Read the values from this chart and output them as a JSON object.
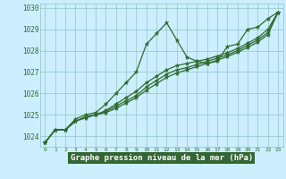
{
  "x": [
    0,
    1,
    2,
    3,
    4,
    5,
    6,
    7,
    8,
    9,
    10,
    11,
    12,
    13,
    14,
    15,
    16,
    17,
    18,
    19,
    20,
    21,
    22,
    23
  ],
  "line_spike": [
    1023.7,
    1024.3,
    1024.3,
    1024.8,
    1025.0,
    1025.1,
    1025.5,
    1026.0,
    1026.5,
    1027.0,
    1028.3,
    1028.8,
    1029.3,
    1028.5,
    1027.7,
    1027.5,
    1027.4,
    1027.5,
    1028.2,
    1028.3,
    1029.0,
    1029.1,
    1029.5,
    1029.8
  ],
  "line_a": [
    1023.7,
    1024.3,
    1024.3,
    1024.7,
    1024.9,
    1025.0,
    1025.2,
    1025.5,
    1025.8,
    1026.1,
    1026.5,
    1026.8,
    1027.1,
    1027.3,
    1027.4,
    1027.5,
    1027.6,
    1027.75,
    1027.9,
    1028.1,
    1028.35,
    1028.6,
    1029.0,
    1029.8
  ],
  "line_b": [
    1023.7,
    1024.3,
    1024.3,
    1024.7,
    1024.9,
    1025.0,
    1025.15,
    1025.4,
    1025.65,
    1025.9,
    1026.3,
    1026.6,
    1026.9,
    1027.1,
    1027.2,
    1027.35,
    1027.5,
    1027.65,
    1027.8,
    1028.0,
    1028.25,
    1028.5,
    1028.85,
    1029.8
  ],
  "line_c": [
    1023.7,
    1024.3,
    1024.3,
    1024.7,
    1024.85,
    1025.0,
    1025.1,
    1025.3,
    1025.55,
    1025.8,
    1026.15,
    1026.45,
    1026.75,
    1026.95,
    1027.1,
    1027.25,
    1027.4,
    1027.55,
    1027.72,
    1027.92,
    1028.15,
    1028.4,
    1028.75,
    1029.8
  ],
  "bg_color": "#cceeff",
  "grid_color": "#99cccc",
  "line_color": "#2d6a2d",
  "xlabel": "Graphe pression niveau de la mer (hPa)",
  "xlabel_bg": "#336633",
  "xlabel_fg": "#ffffff",
  "ylim_min": 1023.5,
  "ylim_max": 1030.2,
  "yticks": [
    1024,
    1025,
    1026,
    1027,
    1028,
    1029,
    1030
  ],
  "marker_size": 3.5,
  "linewidth": 0.9
}
